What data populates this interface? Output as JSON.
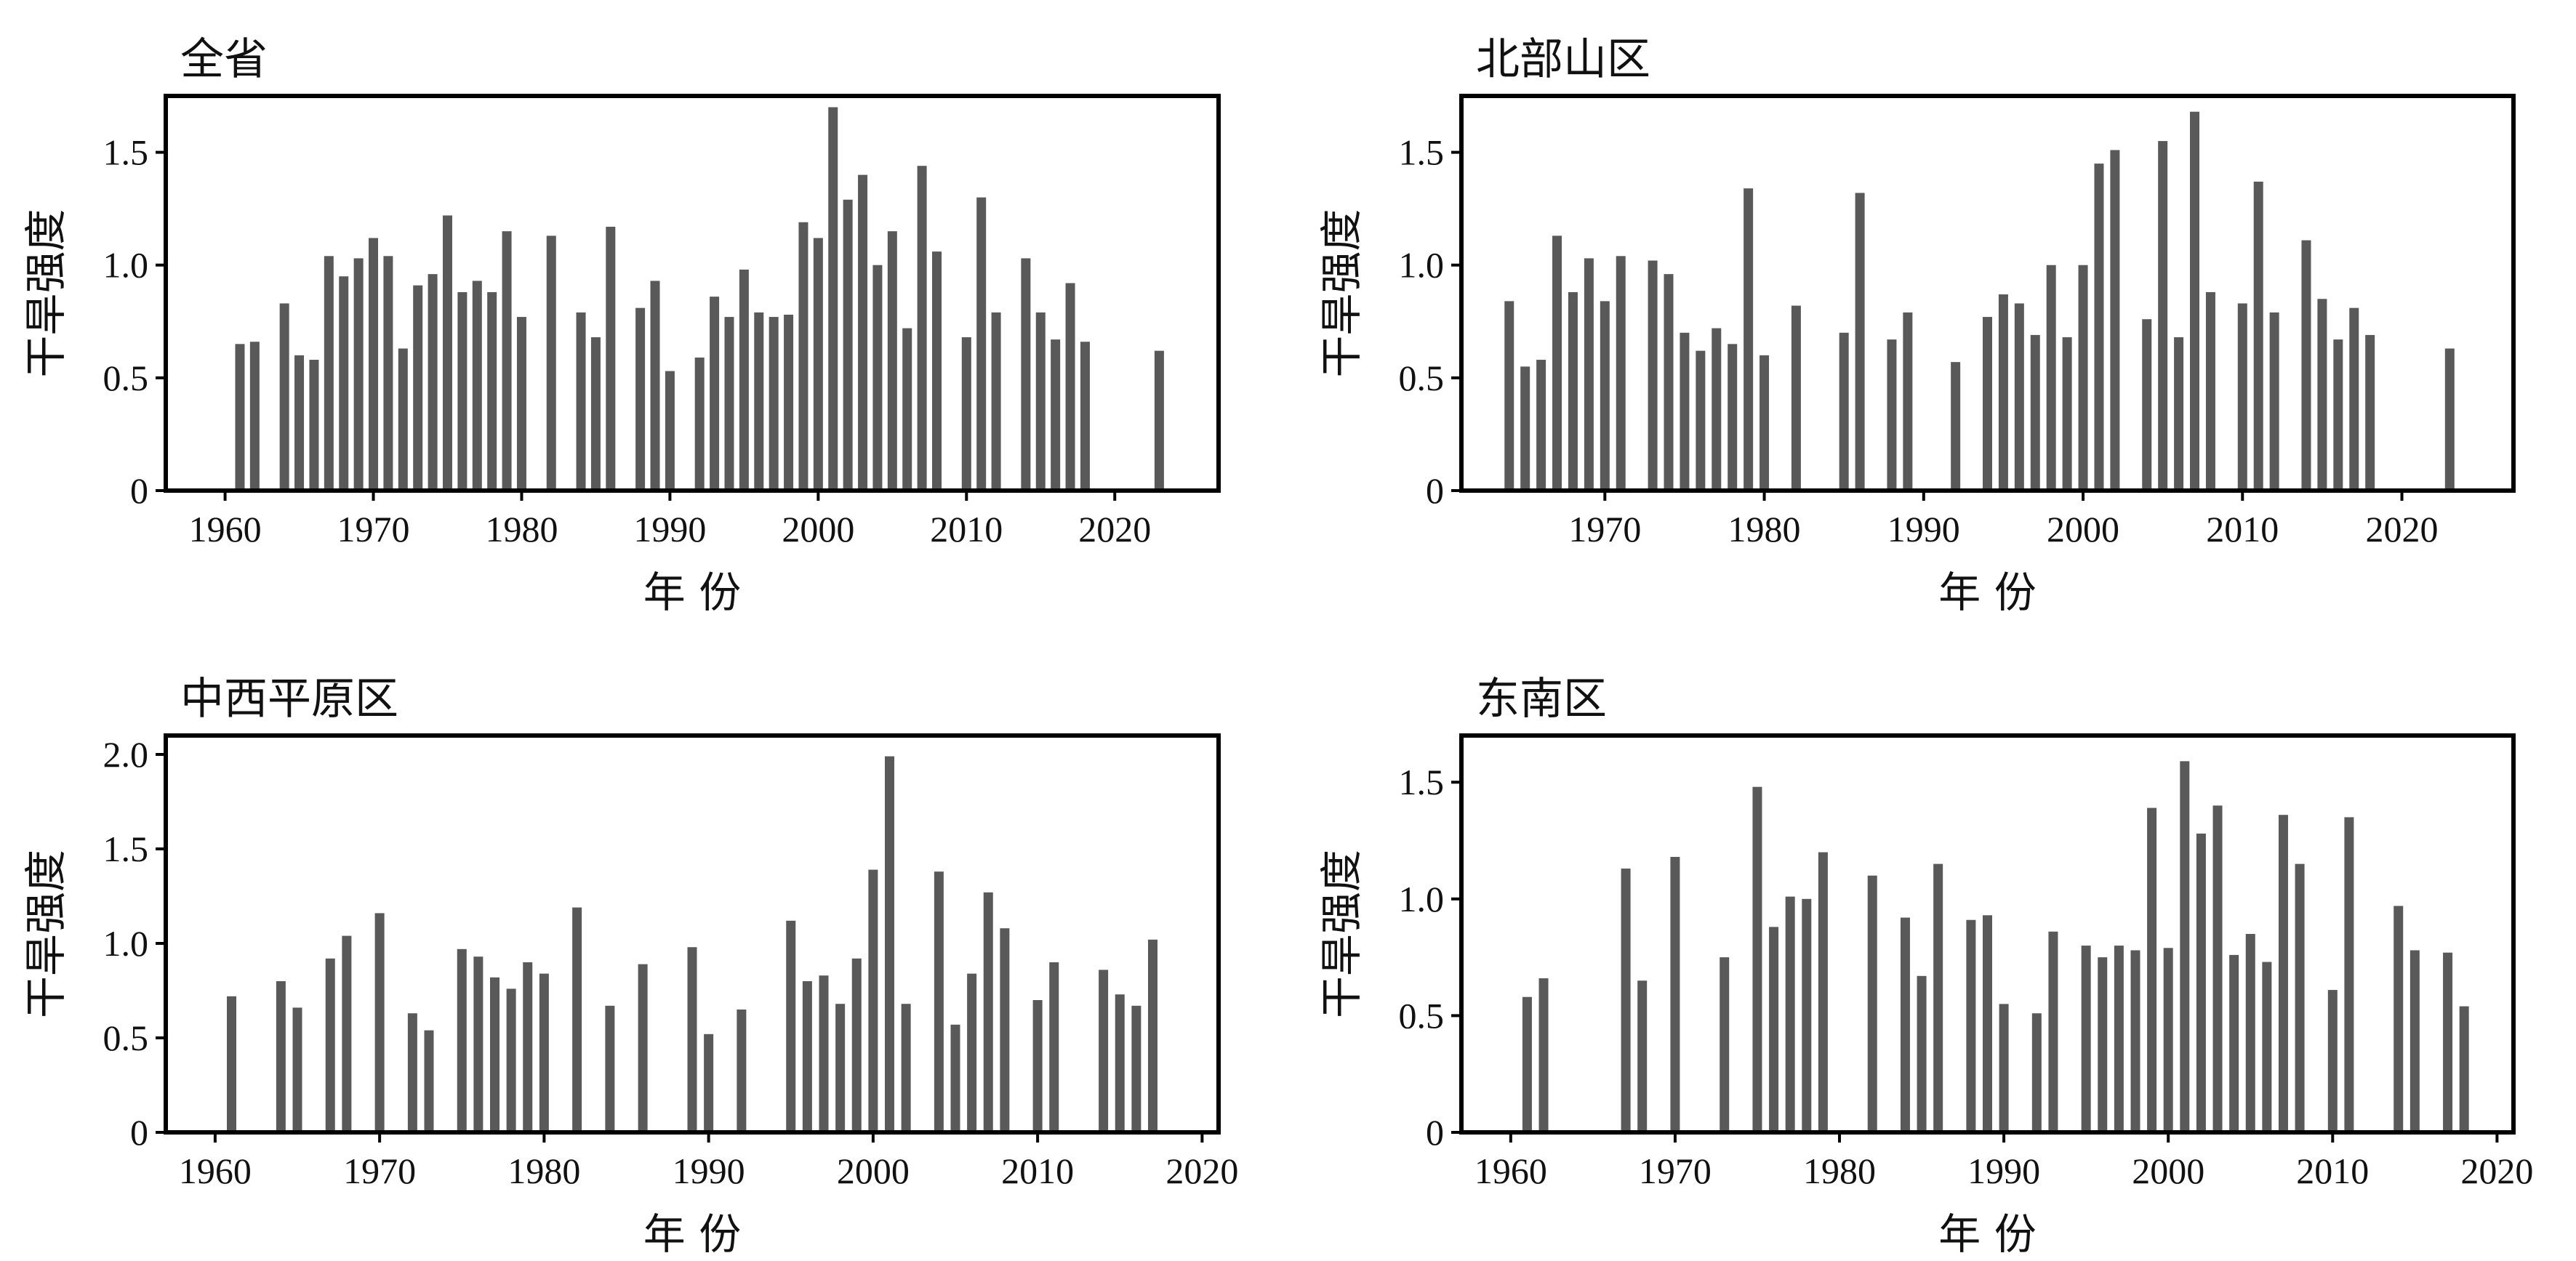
{
  "chart_data": [
    {
      "type": "bar",
      "title": "全省",
      "xlabel": "年  份",
      "ylabel": "干旱强度",
      "xlim": [
        1956,
        2027
      ],
      "ylim": [
        0,
        1.75
      ],
      "xticks": [
        1960,
        1970,
        1980,
        1990,
        2000,
        2010,
        2020
      ],
      "yticks": [
        0,
        0.5,
        1.0,
        1.5
      ],
      "ytick_labels": [
        "0",
        "0.5",
        "1.0",
        "1.5"
      ],
      "grid": false,
      "bar_color": "#595959",
      "x": [
        1961,
        1962,
        1964,
        1965,
        1966,
        1967,
        1968,
        1969,
        1970,
        1971,
        1972,
        1973,
        1974,
        1975,
        1976,
        1977,
        1978,
        1979,
        1980,
        1982,
        1984,
        1985,
        1986,
        1988,
        1989,
        1990,
        1992,
        1993,
        1994,
        1995,
        1996,
        1997,
        1998,
        1999,
        2000,
        2001,
        2002,
        2003,
        2004,
        2005,
        2006,
        2007,
        2008,
        2010,
        2011,
        2012,
        2014,
        2015,
        2016,
        2017,
        2018,
        2023
      ],
      "values": [
        0.65,
        0.66,
        0.83,
        0.6,
        0.58,
        1.04,
        0.95,
        1.03,
        1.12,
        1.04,
        0.63,
        0.91,
        0.96,
        1.22,
        0.88,
        0.93,
        0.88,
        1.15,
        0.77,
        1.13,
        0.79,
        0.68,
        1.17,
        0.81,
        0.93,
        0.53,
        0.59,
        0.86,
        0.77,
        0.98,
        0.79,
        0.77,
        0.78,
        1.19,
        1.12,
        1.7,
        1.29,
        1.4,
        1.0,
        1.15,
        0.72,
        1.44,
        1.06,
        0.68,
        1.3,
        0.79,
        1.03,
        0.79,
        0.67,
        0.92,
        0.66,
        0.62
      ]
    },
    {
      "type": "bar",
      "title": "北部山区",
      "xlabel": "年  份",
      "ylabel": "干旱强度",
      "xlim": [
        1961,
        2027
      ],
      "ylim": [
        0,
        1.75
      ],
      "xticks": [
        1970,
        1980,
        1990,
        2000,
        2010,
        2020
      ],
      "yticks": [
        0,
        0.5,
        1.0,
        1.5
      ],
      "ytick_labels": [
        "0",
        "0.5",
        "1.0",
        "1.5"
      ],
      "grid": false,
      "bar_color": "#595959",
      "x": [
        1964,
        1965,
        1966,
        1967,
        1968,
        1969,
        1970,
        1971,
        1973,
        1974,
        1975,
        1976,
        1977,
        1978,
        1979,
        1980,
        1982,
        1985,
        1986,
        1988,
        1989,
        1992,
        1994,
        1995,
        1996,
        1997,
        1998,
        1999,
        2000,
        2001,
        2002,
        2004,
        2005,
        2006,
        2007,
        2008,
        2010,
        2011,
        2012,
        2014,
        2015,
        2016,
        2017,
        2018,
        2023
      ],
      "values": [
        0.84,
        0.55,
        0.58,
        1.13,
        0.88,
        1.03,
        0.84,
        1.04,
        1.02,
        0.96,
        0.7,
        0.62,
        0.72,
        0.65,
        1.34,
        0.6,
        0.82,
        0.7,
        1.32,
        0.67,
        0.79,
        0.57,
        0.77,
        0.87,
        0.83,
        0.69,
        1.0,
        0.68,
        1.0,
        1.45,
        1.51,
        0.76,
        1.55,
        0.68,
        1.68,
        0.88,
        0.83,
        1.37,
        0.79,
        1.11,
        0.85,
        0.67,
        0.81,
        0.69,
        0.63
      ]
    },
    {
      "type": "bar",
      "title": "中西平原区",
      "xlabel": "年  份",
      "ylabel": "干旱强度",
      "xlim": [
        1957,
        2021
      ],
      "ylim": [
        0,
        2.1
      ],
      "xticks": [
        1960,
        1970,
        1980,
        1990,
        2000,
        2010,
        2020
      ],
      "yticks": [
        0,
        0.5,
        1.0,
        1.5,
        2.0
      ],
      "ytick_labels": [
        "0",
        "0.5",
        "1.0",
        "1.5",
        "2.0"
      ],
      "grid": false,
      "bar_color": "#595959",
      "x": [
        1961,
        1964,
        1965,
        1967,
        1968,
        1970,
        1972,
        1973,
        1975,
        1976,
        1977,
        1978,
        1979,
        1980,
        1982,
        1984,
        1986,
        1989,
        1990,
        1992,
        1995,
        1996,
        1997,
        1998,
        1999,
        2000,
        2001,
        2002,
        2004,
        2005,
        2006,
        2007,
        2008,
        2010,
        2011,
        2014,
        2015,
        2016,
        2017
      ],
      "values": [
        0.72,
        0.8,
        0.66,
        0.92,
        1.04,
        1.16,
        0.63,
        0.54,
        0.97,
        0.93,
        0.82,
        0.76,
        0.9,
        0.84,
        1.19,
        0.67,
        0.89,
        0.98,
        0.52,
        0.65,
        1.12,
        0.8,
        0.83,
        0.68,
        0.92,
        1.39,
        1.99,
        0.68,
        1.38,
        0.57,
        0.84,
        1.27,
        1.08,
        0.7,
        0.9,
        0.86,
        0.73,
        0.67,
        1.02
      ]
    },
    {
      "type": "bar",
      "title": "东南区",
      "xlabel": "年  份",
      "ylabel": "干旱强度",
      "xlim": [
        1957,
        2021
      ],
      "ylim": [
        0,
        1.7
      ],
      "xticks": [
        1960,
        1970,
        1980,
        1990,
        2000,
        2010,
        2020
      ],
      "yticks": [
        0,
        0.5,
        1.0,
        1.5
      ],
      "ytick_labels": [
        "0",
        "0.5",
        "1.0",
        "1.5"
      ],
      "grid": false,
      "bar_color": "#595959",
      "x": [
        1961,
        1962,
        1967,
        1968,
        1970,
        1973,
        1975,
        1976,
        1977,
        1978,
        1979,
        1982,
        1984,
        1985,
        1986,
        1988,
        1989,
        1990,
        1992,
        1993,
        1995,
        1996,
        1997,
        1998,
        1999,
        2000,
        2001,
        2002,
        2003,
        2004,
        2005,
        2006,
        2007,
        2008,
        2010,
        2011,
        2014,
        2015,
        2017,
        2018
      ],
      "values": [
        0.58,
        0.66,
        1.13,
        0.65,
        1.18,
        0.75,
        1.48,
        0.88,
        1.01,
        1.0,
        1.2,
        1.1,
        0.92,
        0.67,
        1.15,
        0.91,
        0.93,
        0.55,
        0.51,
        0.86,
        0.8,
        0.75,
        0.8,
        0.78,
        1.39,
        0.79,
        1.59,
        1.28,
        1.4,
        0.76,
        0.85,
        0.73,
        1.36,
        1.15,
        0.61,
        1.35,
        0.97,
        0.78,
        0.77,
        0.54
      ]
    }
  ]
}
